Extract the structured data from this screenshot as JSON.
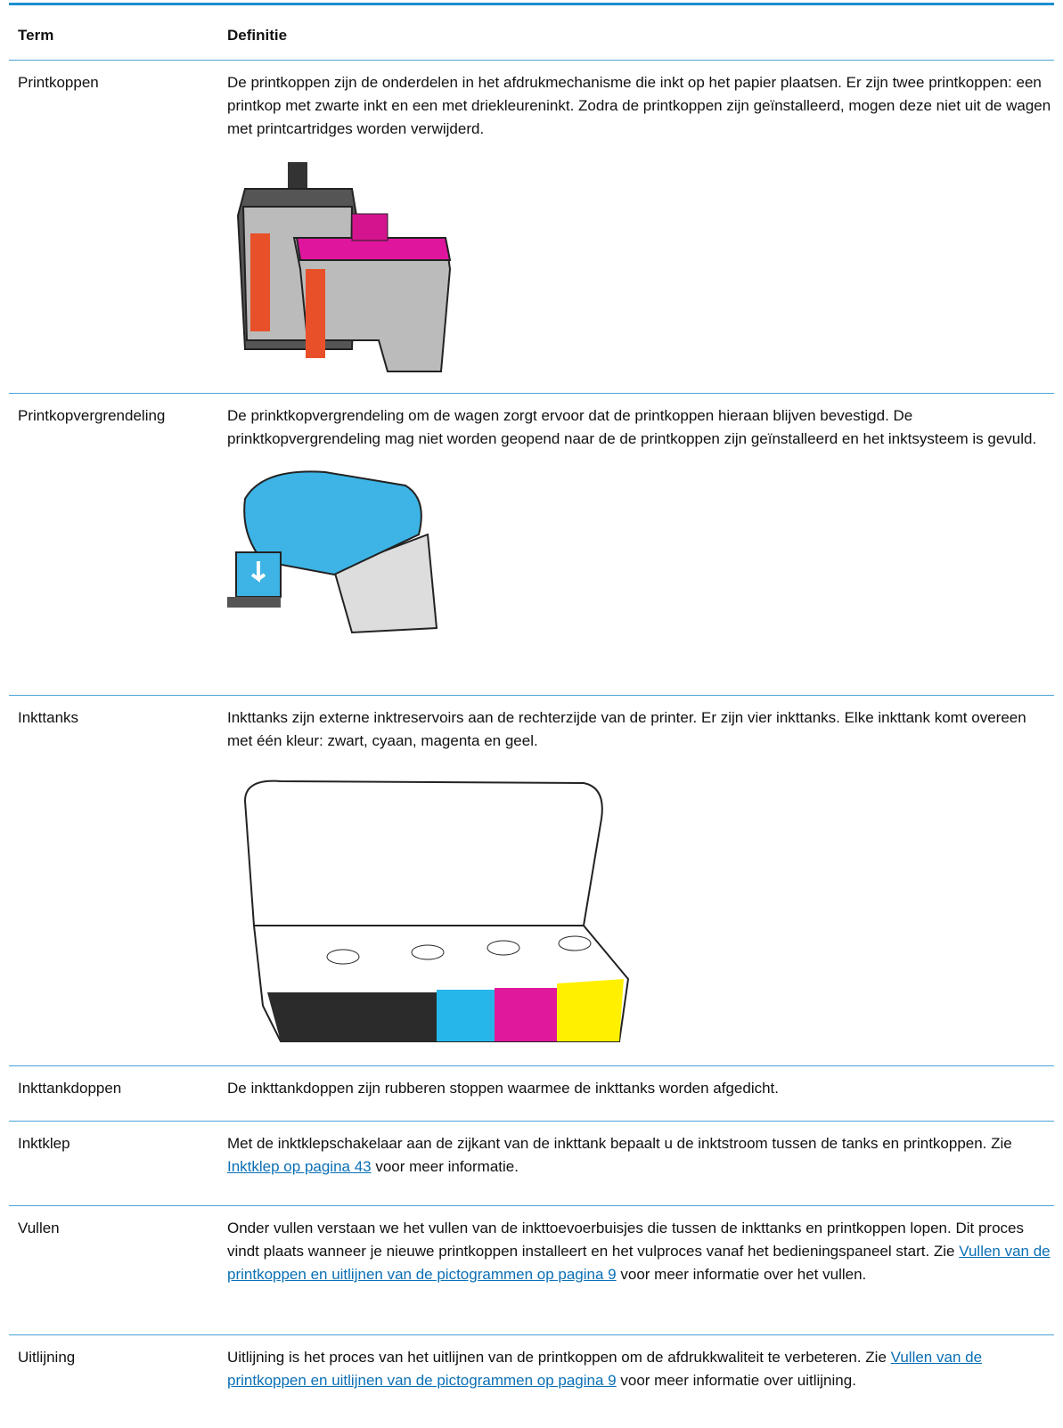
{
  "table": {
    "header": [
      "Term",
      "Definitie"
    ],
    "rows": [
      {
        "term": "Printkoppen",
        "text": "De printkoppen zijn de onderdelen in het afdrukmechanisme die inkt op het papier plaatsen. Er zijn twee printkoppen: een printkop met zwarte inkt en een met driekleureninkt. Zodra de printkoppen zijn geïnstalleerd, mogen deze niet uit de wagen met printcartridges worden verwijderd."
      },
      {
        "term": "Printkopvergrendeling",
        "text": "De prinktkopvergrendeling om de wagen zorgt ervoor dat de printkoppen hieraan blijven bevestigd. De prinktkopvergrendeling mag niet worden geopend naar de de printkoppen zijn geïnstalleerd en het inktsysteem is gevuld."
      },
      {
        "term": "Inkttanks",
        "text": "Inkttanks zijn externe inktreservoirs aan de rechterzijde van de printer. Er zijn vier inkttanks. Elke inkttank komt overeen met één kleur: zwart, cyaan, magenta en geel."
      },
      {
        "term": "Inkttankdoppen",
        "text": "De inkttankdoppen zijn rubberen stoppen waarmee de inkttanks worden afgedicht."
      },
      {
        "term": "Inktklep",
        "text": "Met de inktklepschakelaar aan de zijkant van de inkttank bepaalt u de inktstroom tussen de tanks en printkoppen. Zie ",
        "link": "Inktklep op pagina 43",
        "text_after": " voor meer informatie."
      },
      {
        "term": "Vullen",
        "text": "Onder vullen verstaan we het vullen van de inkttoevoerbuisjes die tussen de inkttanks en printkoppen lopen. Dit proces vindt plaats wanneer je nieuwe printkoppen installeert en het vulproces vanaf het bedieningspaneel start. Zie ",
        "link": "Vullen van de printkoppen en uitlijnen van de pictogrammen op pagina 9",
        "text_after": " voor meer informatie over het vullen."
      },
      {
        "term": "Uitlijning",
        "text": "Uitlijning is het proces van het uitlijnen van de printkoppen om de afdrukkwaliteit te verbeteren. Zie ",
        "link": "Vullen van de printkoppen en uitlijnen van de pictogrammen op pagina 9",
        "text_after": " voor meer informatie over uitlijning."
      }
    ]
  }
}
